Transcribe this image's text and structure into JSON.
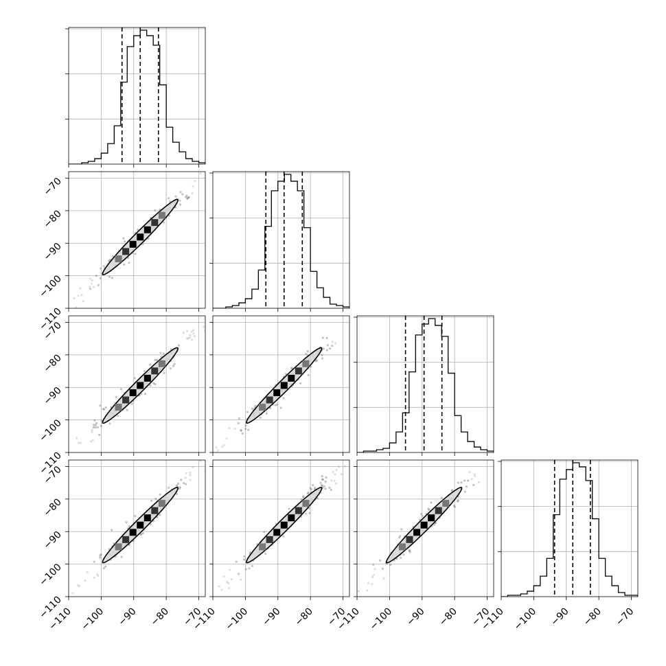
{
  "chart_data": {
    "type": "corner",
    "n_params": 4,
    "param_labels": [
      "",
      "",
      "",
      ""
    ],
    "axis_range": [
      -110,
      -68
    ],
    "bin_edges": [
      -110,
      -108,
      -106,
      -104,
      -102,
      -100,
      -98,
      -96,
      -94,
      -92,
      -90,
      -88,
      -86,
      -84,
      -82,
      -80,
      -78,
      -76,
      -74,
      -72,
      -70,
      -68
    ],
    "histograms": [
      {
        "param": 1,
        "counts": [
          0,
          0,
          0.01,
          0.02,
          0.04,
          0.08,
          0.15,
          0.28,
          0.6,
          0.86,
          0.94,
          0.98,
          0.94,
          0.87,
          0.58,
          0.27,
          0.16,
          0.09,
          0.04,
          0.02,
          0.01
        ],
        "quantiles": [
          -93.6,
          -88.0,
          -82.4
        ]
      },
      {
        "param": 2,
        "counts": [
          0,
          0,
          0.01,
          0.02,
          0.04,
          0.07,
          0.14,
          0.28,
          0.6,
          0.86,
          0.93,
          0.98,
          0.93,
          0.86,
          0.59,
          0.27,
          0.15,
          0.08,
          0.03,
          0.02,
          0.01
        ],
        "quantiles": [
          -93.7,
          -88.1,
          -82.5
        ]
      },
      {
        "param": 3,
        "counts": [
          0,
          0.01,
          0.01,
          0.02,
          0.03,
          0.07,
          0.15,
          0.29,
          0.59,
          0.86,
          0.94,
          0.98,
          0.93,
          0.85,
          0.58,
          0.27,
          0.15,
          0.08,
          0.04,
          0.02,
          0.01
        ],
        "quantiles": [
          -95.1,
          -89.4,
          -83.9
        ]
      },
      {
        "param": 4,
        "counts": [
          0,
          0.01,
          0.01,
          0.02,
          0.04,
          0.08,
          0.15,
          0.28,
          0.6,
          0.86,
          0.93,
          0.98,
          0.95,
          0.85,
          0.57,
          0.28,
          0.15,
          0.08,
          0.03,
          0.01,
          0.01
        ],
        "quantiles": [
          -93.6,
          -88.0,
          -82.6
        ]
      }
    ],
    "contour_levels": [
      "inner",
      "outer"
    ],
    "ticks_x": [
      -110,
      -100,
      -90,
      -80,
      -70
    ],
    "tick_labels_x": [
      "−110",
      "−100",
      "−90",
      "−80",
      "−70"
    ],
    "ticks_y": [
      -110,
      -100,
      -90,
      -80,
      -70
    ],
    "tick_labels_y": [
      "−110",
      "−100",
      "−90",
      "−80",
      "−70"
    ],
    "grid": true,
    "legend": "none",
    "colors": {
      "line": "#000000",
      "fill": "#d6d6d6",
      "grid": "#b0b0b0",
      "points": "#7a7a7a"
    }
  }
}
